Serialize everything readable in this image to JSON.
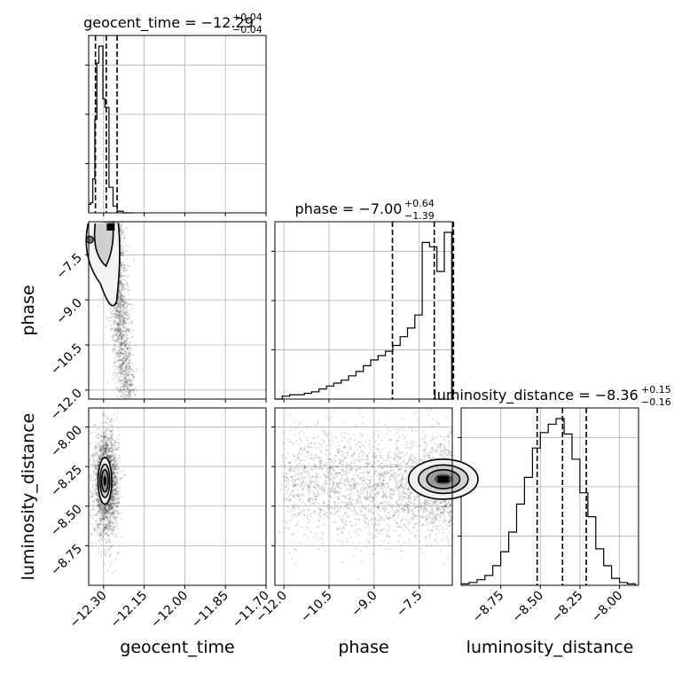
{
  "chart_data": {
    "type": "corner",
    "parameters": [
      "geocent_time",
      "phase",
      "luminosity_distance"
    ],
    "titles": [
      {
        "param": "geocent_time",
        "prefix": "geocent_time = −12.29",
        "plus": "+0.04",
        "minus": "−0.04"
      },
      {
        "param": "phase",
        "prefix": "phase = −7.00",
        "plus": "+0.64",
        "minus": "−1.39"
      },
      {
        "param": "luminosity_distance",
        "prefix": "luminosity_distance = −8.36",
        "plus": "+0.15",
        "minus": "−0.16"
      }
    ],
    "axis_labels": {
      "x": [
        "geocent_time",
        "phase",
        "luminosity_distance"
      ],
      "y": [
        "phase",
        "luminosity_distance"
      ]
    },
    "ranges": {
      "geocent_time": [
        -12.355,
        -11.7
      ],
      "phase": [
        -12.3,
        -6.4
      ],
      "luminosity_distance": [
        -9.0,
        -7.88
      ]
    },
    "ticks": {
      "geocent_time": {
        "values": [
          -12.3,
          -12.15,
          -12.0,
          -11.85,
          -11.7
        ],
        "labels": [
          "−12.30",
          "−12.15",
          "−12.00",
          "−11.85",
          "−11.70"
        ]
      },
      "phase": {
        "values": [
          -12.0,
          -10.5,
          -9.0,
          -7.5
        ],
        "labels": [
          "−12.0",
          "−10.5",
          "−9.0",
          "−7.5"
        ]
      },
      "luminosity_distance": {
        "values": [
          -8.75,
          -8.5,
          -8.25,
          -8.0
        ],
        "labels": [
          "−8.75",
          "−8.50",
          "−8.25",
          "−8.00"
        ]
      }
    },
    "quantiles": {
      "geocent_time": [
        -12.33,
        -12.29,
        -12.25
      ],
      "phase": [
        -8.39,
        -7.0,
        -6.36
      ],
      "luminosity_distance": [
        -8.52,
        -8.36,
        -8.21
      ]
    },
    "histograms": {
      "geocent_time": {
        "bin_edges": [
          -12.355,
          -12.3475,
          -12.34,
          -12.3325,
          -12.325,
          -12.3175,
          -12.31,
          -12.3025,
          -12.295,
          -12.2875,
          -12.28,
          -12.2725,
          -12.265,
          -12.2575,
          -12.25,
          -12.2425,
          -12.235,
          -12.2275,
          -12.22,
          -12.2125,
          -12.205,
          -12.1975,
          -12.19
        ],
        "counts": [
          5,
          6,
          20,
          55,
          88,
          98,
          98,
          67,
          62,
          62,
          15,
          15,
          4,
          4,
          1,
          1,
          1,
          0,
          0,
          0,
          0,
          0
        ]
      },
      "phase": {
        "bin_edges": [
          -12.3,
          -12.055,
          -11.81,
          -11.565,
          -11.32,
          -11.075,
          -10.83,
          -10.585,
          -10.34,
          -10.095,
          -9.85,
          -9.605,
          -9.36,
          -9.115,
          -8.87,
          -8.625,
          -8.38,
          -8.135,
          -7.89,
          -7.645,
          -7.4,
          -7.155,
          -6.91,
          -6.665,
          -6.42
        ],
        "counts": [
          0,
          2,
          3,
          3,
          4,
          5,
          7,
          9,
          11,
          13,
          16,
          19,
          23,
          27,
          30,
          33,
          37,
          43,
          49,
          58,
          108,
          105,
          88,
          115
        ]
      },
      "luminosity_distance": {
        "bin_edges": [
          -9.0,
          -8.95,
          -8.9,
          -8.85,
          -8.8,
          -8.75,
          -8.7,
          -8.65,
          -8.6,
          -8.55,
          -8.5,
          -8.45,
          -8.4,
          -8.35,
          -8.3,
          -8.25,
          -8.2,
          -8.15,
          -8.1,
          -8.05,
          -8.0,
          -7.95,
          -7.9
        ],
        "counts": [
          1,
          2,
          4,
          7,
          14,
          24,
          38,
          58,
          77,
          98,
          109,
          115,
          119,
          108,
          90,
          66,
          49,
          26,
          14,
          5,
          2,
          1
        ]
      }
    },
    "grid": true
  }
}
